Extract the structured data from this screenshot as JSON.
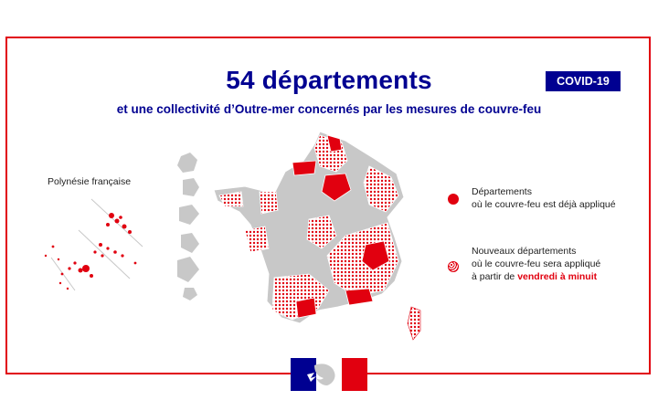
{
  "header": {
    "title": "54 départements",
    "subtitle": "et une collectivité d’Outre-mer concernés par les mesures de couvre-feu",
    "badge": "COVID-19"
  },
  "inset": {
    "label": "Polynésie française"
  },
  "legend": {
    "existing": {
      "line1": "Départements",
      "line2": "où le couvre-feu est déjà appliqué"
    },
    "new": {
      "line1": "Nouveaux départements",
      "line2": "où le couvre-feu sera appliqué",
      "line3_prefix": "à partir de ",
      "line3_highlight": "vendredi à minuit"
    }
  },
  "colors": {
    "brand_blue": "#000091",
    "curfew_red": "#e1000f",
    "land_grey": "#c8c8c8"
  },
  "icons": [
    "marianne-logo-icon"
  ]
}
